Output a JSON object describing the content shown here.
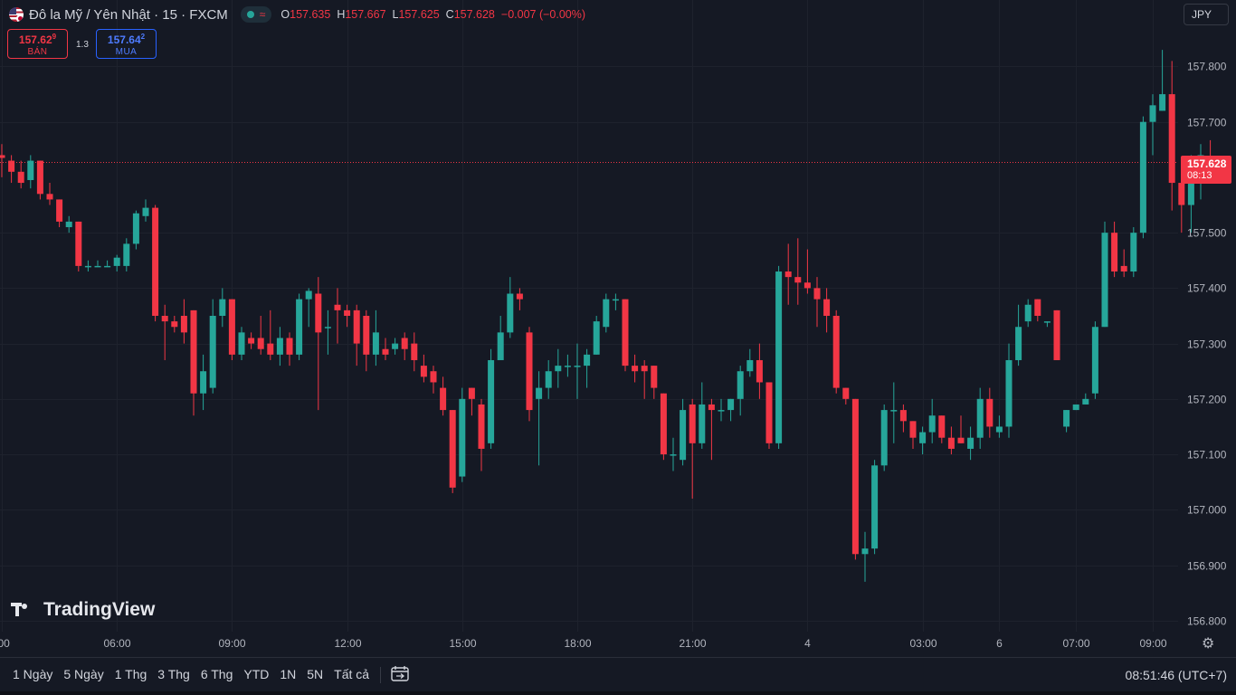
{
  "header": {
    "symbol_title": "Đô la Mỹ / Yên Nhật · 15 · FXCM",
    "ohlc": [
      {
        "key": "O",
        "value": "157.635"
      },
      {
        "key": "H",
        "value": "157.667"
      },
      {
        "key": "L",
        "value": "157.625"
      },
      {
        "key": "C",
        "value": "157.628"
      }
    ],
    "change": "−0.007 (−0.00%)",
    "currency": "JPY"
  },
  "trade": {
    "sell_price_main": "157.62",
    "sell_price_sup": "9",
    "sell_label": "BÁN",
    "spread": "1.3",
    "buy_price_main": "157.64",
    "buy_price_sup": "2",
    "buy_label": "MUA"
  },
  "last_price": {
    "value": "157.628",
    "countdown": "08:13"
  },
  "watermark": "TradingView",
  "range_buttons": [
    "1 Ngày",
    "5 Ngày",
    "1 Thg",
    "3 Thg",
    "6 Thg",
    "YTD",
    "1N",
    "5N",
    "Tất cả"
  ],
  "clock": "08:51:46 (UTC+7)",
  "colors": {
    "up": "#26a69a",
    "down": "#f23645",
    "background": "#151924",
    "grid": "#1e222d"
  },
  "chart_data": {
    "type": "candlestick",
    "y_ticks": [
      156.8,
      156.9,
      157.0,
      157.1,
      157.2,
      157.3,
      157.4,
      157.5,
      157.7,
      157.8
    ],
    "ylim": [
      156.78,
      157.92
    ],
    "x_ticks": [
      {
        "label": ":00",
        "slot": 0
      },
      {
        "label": "06:00",
        "slot": 12
      },
      {
        "label": "09:00",
        "slot": 24
      },
      {
        "label": "12:00",
        "slot": 36
      },
      {
        "label": "15:00",
        "slot": 48
      },
      {
        "label": "18:00",
        "slot": 60
      },
      {
        "label": "21:00",
        "slot": 72
      },
      {
        "label": "4",
        "slot": 84
      },
      {
        "label": "03:00",
        "slot": 96
      },
      {
        "label": "6",
        "slot": 104
      },
      {
        "label": "07:00",
        "slot": 112
      },
      {
        "label": "09:00",
        "slot": 120
      }
    ],
    "candles": [
      [
        157.64,
        157.635,
        157.66,
        157.6
      ],
      [
        157.63,
        157.61,
        157.64,
        157.59
      ],
      [
        157.61,
        157.59,
        157.63,
        157.58
      ],
      [
        157.595,
        157.63,
        157.64,
        157.58
      ],
      [
        157.63,
        157.57,
        157.63,
        157.56
      ],
      [
        157.57,
        157.56,
        157.59,
        157.55
      ],
      [
        157.56,
        157.52,
        157.56,
        157.51
      ],
      [
        157.51,
        157.52,
        157.53,
        157.5
      ],
      [
        157.52,
        157.44,
        157.52,
        157.43
      ],
      [
        157.44,
        157.44,
        157.45,
        157.43
      ],
      [
        157.44,
        157.44,
        157.45,
        157.44
      ],
      [
        157.44,
        157.44,
        157.45,
        157.44
      ],
      [
        157.44,
        157.455,
        157.46,
        157.43
      ],
      [
        157.44,
        157.48,
        157.49,
        157.43
      ],
      [
        157.48,
        157.535,
        157.54,
        157.47
      ],
      [
        157.53,
        157.545,
        157.56,
        157.52
      ],
      [
        157.545,
        157.35,
        157.55,
        157.34
      ],
      [
        157.35,
        157.34,
        157.37,
        157.27
      ],
      [
        157.34,
        157.33,
        157.35,
        157.32
      ],
      [
        157.35,
        157.32,
        157.38,
        157.3
      ],
      [
        157.36,
        157.21,
        157.36,
        157.17
      ],
      [
        157.21,
        157.25,
        157.28,
        157.18
      ],
      [
        157.22,
        157.35,
        157.38,
        157.21
      ],
      [
        157.35,
        157.38,
        157.4,
        157.33
      ],
      [
        157.38,
        157.28,
        157.38,
        157.27
      ],
      [
        157.28,
        157.32,
        157.33,
        157.27
      ],
      [
        157.31,
        157.3,
        157.32,
        157.29
      ],
      [
        157.31,
        157.29,
        157.35,
        157.28
      ],
      [
        157.3,
        157.28,
        157.36,
        157.27
      ],
      [
        157.28,
        157.31,
        157.33,
        157.26
      ],
      [
        157.31,
        157.28,
        157.32,
        157.26
      ],
      [
        157.28,
        157.38,
        157.39,
        157.27
      ],
      [
        157.38,
        157.395,
        157.4,
        157.33
      ],
      [
        157.39,
        157.32,
        157.42,
        157.18
      ],
      [
        157.33,
        157.33,
        157.36,
        157.28
      ],
      [
        157.37,
        157.36,
        157.4,
        157.3
      ],
      [
        157.36,
        157.35,
        157.37,
        157.33
      ],
      [
        157.36,
        157.3,
        157.37,
        157.26
      ],
      [
        157.35,
        157.28,
        157.36,
        157.25
      ],
      [
        157.28,
        157.32,
        157.36,
        157.26
      ],
      [
        157.29,
        157.28,
        157.31,
        157.27
      ],
      [
        157.29,
        157.3,
        157.31,
        157.28
      ],
      [
        157.31,
        157.29,
        157.32,
        157.27
      ],
      [
        157.3,
        157.27,
        157.32,
        157.25
      ],
      [
        157.26,
        157.24,
        157.28,
        157.23
      ],
      [
        157.25,
        157.23,
        157.26,
        157.21
      ],
      [
        157.22,
        157.18,
        157.24,
        157.17
      ],
      [
        157.18,
        157.04,
        157.18,
        157.03
      ],
      [
        157.06,
        157.2,
        157.22,
        157.05
      ],
      [
        157.22,
        157.2,
        157.22,
        157.17
      ],
      [
        157.19,
        157.11,
        157.2,
        157.07
      ],
      [
        157.12,
        157.27,
        157.29,
        157.11
      ],
      [
        157.27,
        157.32,
        157.35,
        157.27
      ],
      [
        157.32,
        157.39,
        157.42,
        157.31
      ],
      [
        157.39,
        157.38,
        157.4,
        157.36
      ],
      [
        157.32,
        157.18,
        157.33,
        157.16
      ],
      [
        157.2,
        157.22,
        157.25,
        157.08
      ],
      [
        157.22,
        157.25,
        157.27,
        157.2
      ],
      [
        157.25,
        157.26,
        157.29,
        157.22
      ],
      [
        157.26,
        157.26,
        157.28,
        157.24
      ],
      [
        157.26,
        157.26,
        157.3,
        157.2
      ],
      [
        157.26,
        157.28,
        157.29,
        157.22
      ],
      [
        157.28,
        157.34,
        157.35,
        157.28
      ],
      [
        157.33,
        157.38,
        157.39,
        157.32
      ],
      [
        157.38,
        157.38,
        157.39,
        157.36
      ],
      [
        157.38,
        157.26,
        157.38,
        157.25
      ],
      [
        157.26,
        157.25,
        157.28,
        157.23
      ],
      [
        157.26,
        157.25,
        157.27,
        157.2
      ],
      [
        157.26,
        157.22,
        157.26,
        157.2
      ],
      [
        157.21,
        157.1,
        157.21,
        157.09
      ],
      [
        157.1,
        157.1,
        157.13,
        157.07
      ],
      [
        157.09,
        157.18,
        157.2,
        157.08
      ],
      [
        157.19,
        157.12,
        157.2,
        157.02
      ],
      [
        157.12,
        157.19,
        157.23,
        157.11
      ],
      [
        157.19,
        157.18,
        157.2,
        157.09
      ],
      [
        157.18,
        157.18,
        157.2,
        157.16
      ],
      [
        157.18,
        157.2,
        157.2,
        157.16
      ],
      [
        157.2,
        157.25,
        157.26,
        157.17
      ],
      [
        157.25,
        157.27,
        157.29,
        157.24
      ],
      [
        157.27,
        157.23,
        157.3,
        157.2
      ],
      [
        157.23,
        157.12,
        157.23,
        157.11
      ],
      [
        157.12,
        157.43,
        157.44,
        157.11
      ],
      [
        157.43,
        157.42,
        157.48,
        157.37
      ],
      [
        157.42,
        157.41,
        157.49,
        157.37
      ],
      [
        157.41,
        157.4,
        157.47,
        157.39
      ],
      [
        157.4,
        157.38,
        157.42,
        157.33
      ],
      [
        157.38,
        157.35,
        157.4,
        157.32
      ],
      [
        157.35,
        157.22,
        157.36,
        157.21
      ],
      [
        157.22,
        157.2,
        157.22,
        157.19
      ],
      [
        157.2,
        156.92,
        157.2,
        156.91
      ],
      [
        156.92,
        156.93,
        156.96,
        156.87
      ],
      [
        156.93,
        157.08,
        157.09,
        156.92
      ],
      [
        157.08,
        157.18,
        157.19,
        157.07
      ],
      [
        157.18,
        157.18,
        157.23,
        157.12
      ],
      [
        157.18,
        157.16,
        157.19,
        157.14
      ],
      [
        157.16,
        157.13,
        157.16,
        157.11
      ],
      [
        157.12,
        157.14,
        157.15,
        157.1
      ],
      [
        157.14,
        157.17,
        157.2,
        157.12
      ],
      [
        157.17,
        157.13,
        157.17,
        157.12
      ],
      [
        157.13,
        157.11,
        157.15,
        157.1
      ],
      [
        157.13,
        157.12,
        157.17,
        157.12
      ],
      [
        157.11,
        157.13,
        157.15,
        157.09
      ],
      [
        157.13,
        157.2,
        157.22,
        157.11
      ],
      [
        157.2,
        157.15,
        157.22,
        157.13
      ],
      [
        157.14,
        157.15,
        157.17,
        157.13
      ],
      [
        157.15,
        157.27,
        157.3,
        157.13
      ],
      [
        157.27,
        157.33,
        157.37,
        157.26
      ],
      [
        157.34,
        157.37,
        157.38,
        157.33
      ],
      [
        157.38,
        157.35,
        157.38,
        157.34
      ],
      [
        157.34,
        157.34,
        157.34,
        157.33
      ],
      [
        157.36,
        157.27,
        157.36,
        157.27
      ],
      [
        157.15,
        157.18,
        157.18,
        157.14
      ],
      [
        157.18,
        157.19,
        157.19,
        157.18
      ],
      [
        157.19,
        157.2,
        157.21,
        157.19
      ],
      [
        157.21,
        157.33,
        157.34,
        157.2
      ],
      [
        157.33,
        157.5,
        157.52,
        157.33
      ],
      [
        157.5,
        157.43,
        157.52,
        157.42
      ],
      [
        157.44,
        157.43,
        157.47,
        157.42
      ],
      [
        157.43,
        157.5,
        157.51,
        157.42
      ],
      [
        157.5,
        157.7,
        157.71,
        157.49
      ],
      [
        157.7,
        157.73,
        157.75,
        157.64
      ],
      [
        157.72,
        157.75,
        157.83,
        157.72
      ],
      [
        157.75,
        157.59,
        157.81,
        157.54
      ],
      [
        157.59,
        157.55,
        157.62,
        157.5
      ],
      [
        157.55,
        157.6,
        157.64,
        157.5
      ],
      [
        157.6,
        157.64,
        157.66,
        157.56
      ],
      [
        157.635,
        157.628,
        157.667,
        157.625
      ]
    ]
  }
}
